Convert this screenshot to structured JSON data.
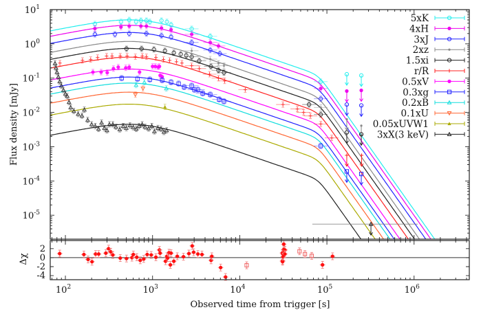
{
  "chart_data": {
    "type": "scatter",
    "title": "",
    "xlabel": "Observed time from trigger [s]",
    "ylabel": "Flux density [mJy]",
    "xscale": "log",
    "yscale": "log",
    "xlim": [
      67,
      4300000
    ],
    "ylim": [
      2e-06,
      10
    ],
    "x_tick_exponents": [
      2,
      3,
      4,
      5,
      6
    ],
    "y_tick_exponents": [
      1,
      0,
      -1,
      -2,
      -3,
      -4,
      -5
    ],
    "tick_base": "10",
    "grid": false,
    "legend_position": "top-right",
    "model": {
      "t_peak": 700,
      "rise_index": 0.5,
      "decay_index": 0.87,
      "t_break": 80000,
      "post_break_index": 3.6
    },
    "series": [
      {
        "name": "5xK",
        "color": "#22eeee",
        "marker": "open-circle",
        "model_peak": 4.9,
        "points": [
          [
            218,
            3.8
          ],
          [
            434,
            4.4
          ],
          [
            540,
            5.0
          ],
          [
            647,
            4.4
          ],
          [
            735,
            4.8
          ],
          [
            850,
            4.8
          ],
          [
            930,
            4.4
          ],
          [
            1265,
            4.8
          ],
          [
            1460,
            4.4
          ],
          [
            1630,
            3.6
          ],
          [
            2810,
            2.75
          ],
          [
            4590,
            1.66
          ],
          [
            85000,
            0.079
          ]
        ],
        "upper_limits": [
          [
            169000,
            0.13
          ],
          [
            248000,
            0.12
          ]
        ]
      },
      {
        "name": "4xH",
        "color": "#ee00ee",
        "marker": "filled-circle",
        "model_peak": 3.4,
        "points": [
          [
            218,
            2.8
          ],
          [
            434,
            3.1
          ],
          [
            540,
            3.3
          ],
          [
            735,
            3.3
          ],
          [
            850,
            3.3
          ],
          [
            1265,
            2.9
          ],
          [
            1630,
            2.6
          ],
          [
            2810,
            1.9
          ],
          [
            4590,
            1.1
          ],
          [
            5702,
            0.87
          ],
          [
            85000,
            0.05
          ]
        ],
        "upper_limits": [
          [
            169000,
            0.042
          ],
          [
            248000,
            0.044
          ]
        ]
      },
      {
        "name": "3xJ",
        "color": "#2222ff",
        "marker": "open-circle",
        "model_peak": 2.1,
        "points": [
          [
            218,
            1.9
          ],
          [
            370,
            1.9
          ],
          [
            540,
            2.0
          ],
          [
            850,
            2.0
          ],
          [
            1265,
            1.74
          ],
          [
            1630,
            1.6
          ],
          [
            2810,
            1.1
          ],
          [
            4590,
            0.66
          ],
          [
            5912,
            0.52
          ],
          [
            85000,
            0.025
          ]
        ],
        "upper_limits": [
          [
            169000,
            0.017
          ],
          [
            248000,
            0.016
          ]
        ]
      },
      {
        "name": "2xz",
        "color": "#888888",
        "marker": "small-dot",
        "model_peak": 1.15,
        "points": [
          [
            2810,
            0.63
          ],
          [
            4590,
            0.36
          ],
          [
            5702,
            0.27
          ],
          [
            6590,
            0.23
          ],
          [
            85000,
            0.014
          ]
        ],
        "upper_limits": [
          [
            169000,
            0.0063
          ],
          [
            248000,
            0.0041
          ]
        ]
      },
      {
        "name": "1.5xi",
        "color": "#222222",
        "marker": "open-circle",
        "model_peak": 0.72,
        "points": [
          [
            502,
            0.72
          ],
          [
            748,
            0.72
          ],
          [
            1037,
            0.69
          ],
          [
            1387,
            0.63
          ],
          [
            1754,
            0.55
          ],
          [
            2104,
            0.5
          ],
          [
            2432,
            0.46
          ],
          [
            2810,
            0.42
          ],
          [
            3430,
            0.32
          ],
          [
            4667,
            0.22
          ],
          [
            5702,
            0.17
          ],
          [
            6590,
            0.145
          ],
          [
            62400,
            0.017
          ],
          [
            85000,
            0.0087
          ]
        ],
        "upper_limits": [
          [
            169000,
            0.0026
          ],
          [
            248000,
            0.0023
          ]
        ]
      },
      {
        "name": "r/R",
        "color": "#ff2222",
        "marker": "plus",
        "model_peak": 0.4,
        "points": [
          [
            86.5,
            0.275
          ],
          [
            157,
            0.33
          ],
          [
            195,
            0.35
          ],
          [
            234,
            0.4
          ],
          [
            297,
            0.44
          ],
          [
            343,
            0.44
          ],
          [
            426,
            0.44
          ],
          [
            511,
            0.44
          ],
          [
            635,
            0.42
          ],
          [
            763,
            0.44
          ],
          [
            850,
            0.42
          ],
          [
            1093,
            0.4
          ],
          [
            1333,
            0.35
          ],
          [
            1570,
            0.33
          ],
          [
            1880,
            0.3
          ],
          [
            2170,
            0.275
          ],
          [
            2810,
            0.23
          ],
          [
            3430,
            0.19
          ],
          [
            4506,
            0.13
          ],
          [
            5702,
            0.1
          ],
          [
            6710,
            0.083
          ],
          [
            11560,
            0.046
          ],
          [
            31300,
            0.017
          ],
          [
            45800,
            0.0126
          ],
          [
            54000,
            0.01
          ],
          [
            64700,
            0.0079
          ],
          [
            85000,
            0.0046
          ],
          [
            113500,
            0.0018
          ]
        ],
        "upper_limits": [
          [
            169000,
            0.00056
          ],
          [
            250000,
            0.00056
          ]
        ]
      },
      {
        "name": "0.5xV",
        "color": "#ff00ff",
        "marker": "filled-circle",
        "model_peak": 0.18,
        "points": [
          [
            207,
            0.15
          ],
          [
            257,
            0.15
          ],
          [
            302,
            0.145
          ],
          [
            356,
            0.19
          ],
          [
            404,
            0.21
          ],
          [
            493,
            0.2
          ],
          [
            540,
            0.21
          ],
          [
            709,
            0.15
          ],
          [
            1000,
            0.22
          ],
          [
            1075,
            0.22
          ],
          [
            1156,
            0.21
          ],
          [
            1199,
            0.22
          ],
          [
            1221,
            0.12
          ],
          [
            1289,
            0.11
          ]
        ],
        "upper_limits": []
      },
      {
        "name": "0.3xg",
        "color": "#2222ff",
        "marker": "open-square",
        "model_peak": 0.105,
        "points": [
          [
            442,
            0.1
          ],
          [
            671,
            0.095
          ],
          [
            930,
            0.091
          ],
          [
            1289,
            0.087
          ],
          [
            1630,
            0.076
          ],
          [
            1992,
            0.069
          ],
          [
            2303,
            0.055
          ],
          [
            2810,
            0.06
          ],
          [
            3022,
            0.046
          ],
          [
            3311,
            0.046
          ],
          [
            3758,
            0.036
          ],
          [
            4590,
            0.033
          ],
          [
            5808,
            0.024
          ],
          [
            6590,
            0.021
          ],
          [
            85000,
            0.00105
          ]
        ],
        "upper_limits": [
          [
            169000,
            0.00019
          ],
          [
            248000,
            0.00016
          ]
        ]
      },
      {
        "name": "0.2xB",
        "color": "#11dddd",
        "marker": "open-triangle",
        "model_peak": 0.07,
        "points": [
          [
            647,
            0.063
          ],
          [
            805,
            0.076
          ],
          [
            1437,
            0.05
          ]
        ],
        "upper_limits": []
      },
      {
        "name": "0.1xU",
        "color": "#ff6633",
        "marker": "open-down-triangle",
        "model_peak": 0.038,
        "points": [
          [
            635,
            0.033
          ],
          [
            776,
            0.05
          ]
        ],
        "upper_limits": []
      },
      {
        "name": "0.05xUVW1",
        "color": "#aaaa00",
        "marker": "filled-triangle",
        "model_peak": 0.017,
        "points": [
          [
            1387,
            0.0145
          ]
        ],
        "upper_limits": []
      },
      {
        "name": "3xX(3 keV)",
        "color": "#222222",
        "marker": "open-triangle",
        "model_peak": 0.0044,
        "points": [
          [
            76,
            0.27
          ],
          [
            78,
            0.2
          ],
          [
            80,
            0.15
          ],
          [
            83,
            0.11
          ],
          [
            86,
            0.08
          ],
          [
            90,
            0.06
          ],
          [
            95,
            0.045
          ],
          [
            100,
            0.035
          ],
          [
            105,
            0.03
          ],
          [
            110,
            0.02
          ],
          [
            115,
            0.014
          ],
          [
            125,
            0.011
          ],
          [
            140,
            0.009
          ],
          [
            155,
            0.008
          ],
          [
            165,
            0.012
          ],
          [
            180,
            0.006
          ],
          [
            200,
            0.0045
          ],
          [
            220,
            0.004
          ],
          [
            240,
            0.0033
          ],
          [
            260,
            0.005
          ],
          [
            280,
            0.0035
          ],
          [
            300,
            0.003
          ],
          [
            320,
            0.0045
          ],
          [
            350,
            0.0045
          ],
          [
            380,
            0.0038
          ],
          [
            420,
            0.0032
          ],
          [
            460,
            0.004
          ],
          [
            500,
            0.0035
          ],
          [
            550,
            0.0042
          ],
          [
            600,
            0.0037
          ],
          [
            650,
            0.0033
          ],
          [
            700,
            0.004
          ],
          [
            760,
            0.0045
          ],
          [
            820,
            0.0038
          ],
          [
            900,
            0.0034
          ],
          [
            980,
            0.004
          ],
          [
            1050,
            0.0028
          ],
          [
            1150,
            0.0035
          ],
          [
            1250,
            0.0033
          ],
          [
            1350,
            0.0027
          ],
          [
            1450,
            0.003
          ]
        ],
        "upper_limits": [
          [
            320000,
            5.5e-06
          ]
        ]
      }
    ],
    "residuals": {
      "ylabel": "Δχ",
      "ylim": [
        -4.9,
        3.8
      ],
      "yticks": [
        2,
        0,
        -2,
        -4
      ],
      "color": "#ff1111",
      "points": [
        [
          86,
          0.9
        ],
        [
          163,
          0.7
        ],
        [
          182,
          -0.4
        ],
        [
          202,
          -0.9
        ],
        [
          222,
          0.8
        ],
        [
          241,
          0.8
        ],
        [
          291,
          1.0
        ],
        [
          313,
          2.0
        ],
        [
          331,
          1.3
        ],
        [
          350,
          0.6
        ],
        [
          426,
          -0.1
        ],
        [
          502,
          -0.2
        ],
        [
          580,
          0.0
        ],
        [
          602,
          0.7
        ],
        [
          659,
          0.1
        ],
        [
          722,
          -0.6
        ],
        [
          792,
          -0.3
        ],
        [
          868,
          0.7
        ],
        [
          965,
          0.6
        ],
        [
          1092,
          0.1
        ],
        [
          1199,
          1.7
        ],
        [
          1221,
          1.0
        ],
        [
          1409,
          -0.8
        ],
        [
          1460,
          0.3
        ],
        [
          1487,
          -0.1
        ],
        [
          1544,
          1.1
        ],
        [
          1600,
          -1.6
        ],
        [
          1630,
          1.0
        ],
        [
          1754,
          -0.8
        ],
        [
          1920,
          0.3
        ],
        [
          2261,
          0.2
        ],
        [
          2610,
          0.9
        ],
        [
          2850,
          2.6
        ],
        [
          2960,
          1.2
        ],
        [
          3311,
          0.8
        ],
        [
          3690,
          0.7
        ],
        [
          4690,
          -0.6
        ],
        [
          4780,
          0.3
        ],
        [
          6040,
          -2.2
        ],
        [
          6870,
          -4.3
        ],
        [
          31000,
          1.1
        ],
        [
          31000,
          0.9
        ],
        [
          31000,
          -0.7
        ],
        [
          31000,
          -0.9
        ],
        [
          31500,
          0.2
        ],
        [
          32000,
          3.0
        ],
        [
          32000,
          1.8
        ],
        [
          33000,
          1.7
        ],
        [
          33000,
          0.8
        ],
        [
          89000,
          -1.6
        ],
        [
          116000,
          0.3
        ]
      ],
      "open_points": [
        [
          12000,
          -1.7
        ],
        [
          48500,
          1.4
        ],
        [
          56000,
          0.8
        ],
        [
          67000,
          0.4
        ]
      ]
    }
  }
}
